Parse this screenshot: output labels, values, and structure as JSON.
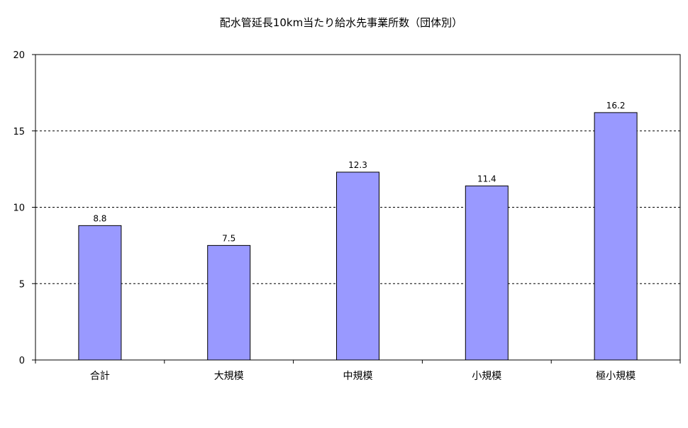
{
  "chart_data": {
    "type": "bar",
    "title": "配水管延長10km当たり給水先事業所数（団体別）",
    "xlabel": "",
    "ylabel": "",
    "categories": [
      "合計",
      "大規模",
      "中規模",
      "小規模",
      "極小規模"
    ],
    "series": [
      {
        "values": [
          8.8,
          7.5,
          12.3,
          11.4,
          16.2
        ]
      }
    ],
    "data_labels": [
      "8.8",
      "7.5",
      "12.3",
      "11.4",
      "16.2"
    ],
    "ylim": [
      0,
      20
    ],
    "yticks": [
      0,
      5,
      10,
      15,
      20
    ],
    "grid": true,
    "legend": "none",
    "colors": {
      "bar_fill": "#9999ff",
      "bar_stroke": "#000000",
      "grid": "#000000",
      "axis": "#000000"
    }
  }
}
